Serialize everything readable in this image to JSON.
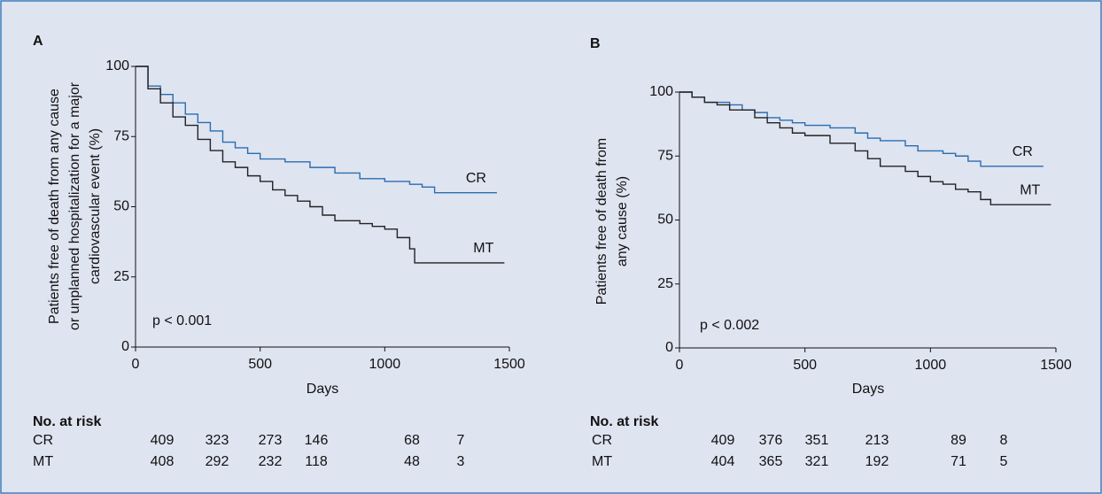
{
  "chart_data": [
    {
      "type": "line",
      "label": "A",
      "ylabel": [
        "Patients free of death from any cause",
        "or unplanned hospitalization for a major",
        "cardiovascular event (%)"
      ],
      "xlabel": "Days",
      "annotation": "p < 0.001",
      "xlim": [
        0,
        1500
      ],
      "xticks": [
        0,
        500,
        1000,
        1500
      ],
      "ylim": [
        0,
        100
      ],
      "yticks": [
        0,
        25,
        50,
        75,
        100
      ],
      "grid": false,
      "step": true,
      "series": [
        {
          "name": "CR",
          "color": "#2a6db0",
          "x": [
            0,
            50,
            100,
            150,
            200,
            250,
            300,
            350,
            400,
            450,
            500,
            600,
            700,
            800,
            900,
            1000,
            1100,
            1150,
            1200,
            1450
          ],
          "values": [
            100,
            93,
            90,
            87,
            83,
            80,
            77,
            73,
            71,
            69,
            67,
            66,
            64,
            62,
            60,
            59,
            58,
            57,
            55,
            55
          ]
        },
        {
          "name": "MT",
          "color": "#222222",
          "x": [
            0,
            50,
            100,
            150,
            200,
            250,
            300,
            350,
            400,
            450,
            500,
            550,
            600,
            650,
            700,
            750,
            800,
            900,
            950,
            1000,
            1050,
            1100,
            1120,
            1480
          ],
          "values": [
            100,
            92,
            87,
            82,
            79,
            74,
            70,
            66,
            64,
            61,
            59,
            56,
            54,
            52,
            50,
            47,
            45,
            44,
            43,
            42,
            39,
            35,
            30,
            30
          ]
        }
      ],
      "risk_table": {
        "title": "No. at risk",
        "rows": [
          {
            "name": "CR",
            "values": [
              409,
              323,
              273,
              146,
              68,
              7
            ]
          },
          {
            "name": "MT",
            "values": [
              408,
              292,
              232,
              118,
              48,
              3
            ]
          }
        ]
      }
    },
    {
      "type": "line",
      "label": "B",
      "ylabel": [
        "Patients free of death from",
        "any cause (%)"
      ],
      "xlabel": "Days",
      "annotation": "p < 0.002",
      "xlim": [
        0,
        1500
      ],
      "xticks": [
        0,
        500,
        1000,
        1500
      ],
      "ylim": [
        0,
        100
      ],
      "yticks": [
        0,
        25,
        50,
        75,
        100
      ],
      "grid": false,
      "step": true,
      "series": [
        {
          "name": "CR",
          "color": "#2a6db0",
          "x": [
            0,
            50,
            100,
            200,
            250,
            300,
            350,
            400,
            450,
            500,
            600,
            700,
            750,
            800,
            900,
            950,
            1000,
            1050,
            1100,
            1150,
            1200,
            1450
          ],
          "values": [
            100,
            98,
            96,
            95,
            93,
            92,
            90,
            89,
            88,
            87,
            86,
            84,
            82,
            81,
            79,
            77,
            77,
            76,
            75,
            73,
            71,
            71
          ]
        },
        {
          "name": "MT",
          "color": "#222222",
          "x": [
            0,
            50,
            100,
            150,
            200,
            250,
            300,
            350,
            400,
            450,
            500,
            600,
            700,
            750,
            800,
            900,
            950,
            1000,
            1050,
            1100,
            1150,
            1200,
            1240,
            1480
          ],
          "values": [
            100,
            98,
            96,
            95,
            93,
            93,
            90,
            88,
            86,
            84,
            83,
            80,
            77,
            74,
            71,
            69,
            67,
            65,
            64,
            62,
            61,
            58,
            56,
            56
          ]
        }
      ],
      "risk_table": {
        "title": "No. at risk",
        "rows": [
          {
            "name": "CR",
            "values": [
              409,
              376,
              351,
              213,
              89,
              8
            ]
          },
          {
            "name": "MT",
            "values": [
              404,
              365,
              321,
              192,
              71,
              5
            ]
          }
        ]
      }
    }
  ]
}
